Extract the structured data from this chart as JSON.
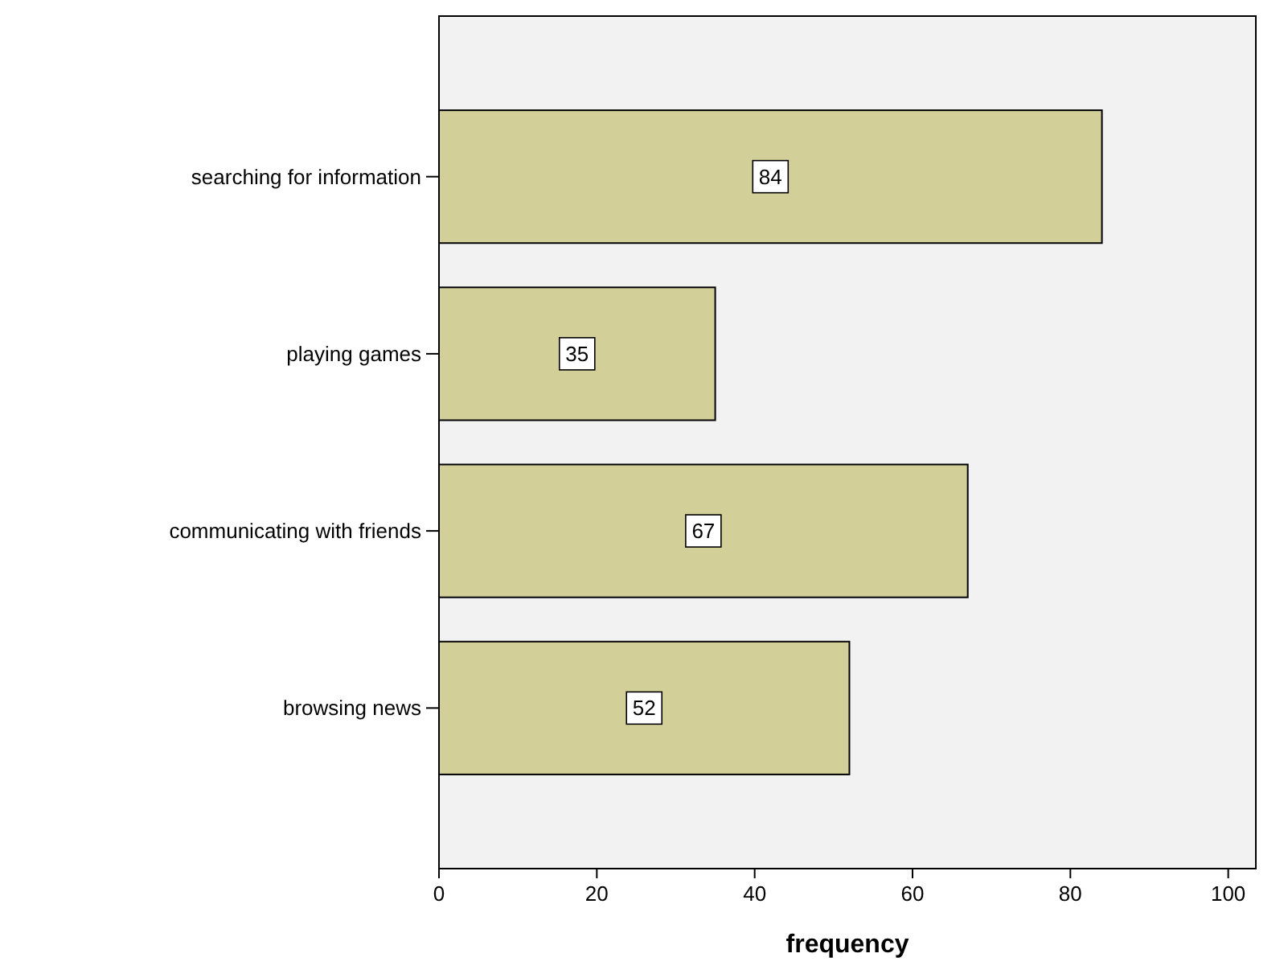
{
  "chart_data": {
    "type": "bar",
    "orientation": "horizontal",
    "categories": [
      "searching for information",
      "playing games",
      "communicating with friends",
      "browsing news"
    ],
    "values": [
      84,
      35,
      67,
      52
    ],
    "color": "#d3cf98",
    "xlim": [
      0,
      103.5
    ],
    "xticks": [
      0,
      20,
      40,
      60,
      80,
      100
    ],
    "xlabel": "frequency",
    "data_labels": true,
    "grid": false
  }
}
